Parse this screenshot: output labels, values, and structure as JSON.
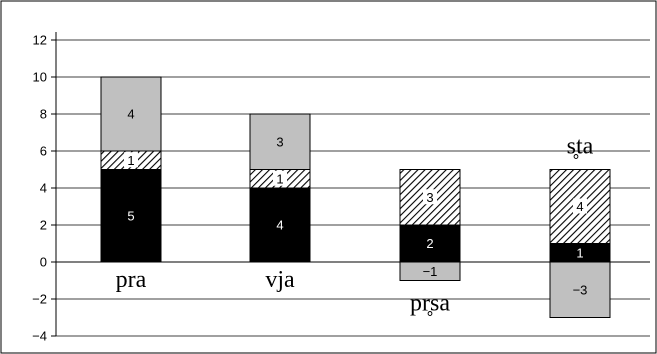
{
  "chart_data": {
    "type": "bar",
    "stacked": true,
    "categories": [
      "pra",
      "vja",
      "pr̥sa",
      "s̥ta"
    ],
    "ylim": [
      -4,
      12
    ],
    "yticks": [
      "−4",
      "−2",
      "0",
      "2",
      "4",
      "6",
      "8",
      "10",
      "12"
    ],
    "grid": true,
    "series": [
      {
        "fill": "#000000",
        "pattern": "solid",
        "label_color": "#ffffff",
        "values": [
          5,
          4,
          2,
          1
        ],
        "labels": [
          "5",
          "4",
          "2",
          "1"
        ]
      },
      {
        "fill": "#ffffff",
        "pattern": "diagonal-hatch",
        "label_color": "#000000",
        "values": [
          1,
          1,
          3,
          4
        ],
        "labels": [
          "1",
          "1",
          "3",
          "4"
        ]
      },
      {
        "fill": "#c0c0c0",
        "pattern": "solid",
        "label_color": "#000000",
        "values": [
          4,
          3,
          -1,
          -3
        ],
        "labels": [
          "4",
          "3",
          "−1",
          "−3"
        ]
      }
    ],
    "category_label_placement": [
      "below-zero",
      "below-zero",
      "below-bar",
      "above-bar"
    ],
    "colors": {
      "background": "#ffffff",
      "axis": "#000000",
      "grid": "#000000",
      "gray": "#c0c0c0",
      "black": "#000000"
    }
  }
}
